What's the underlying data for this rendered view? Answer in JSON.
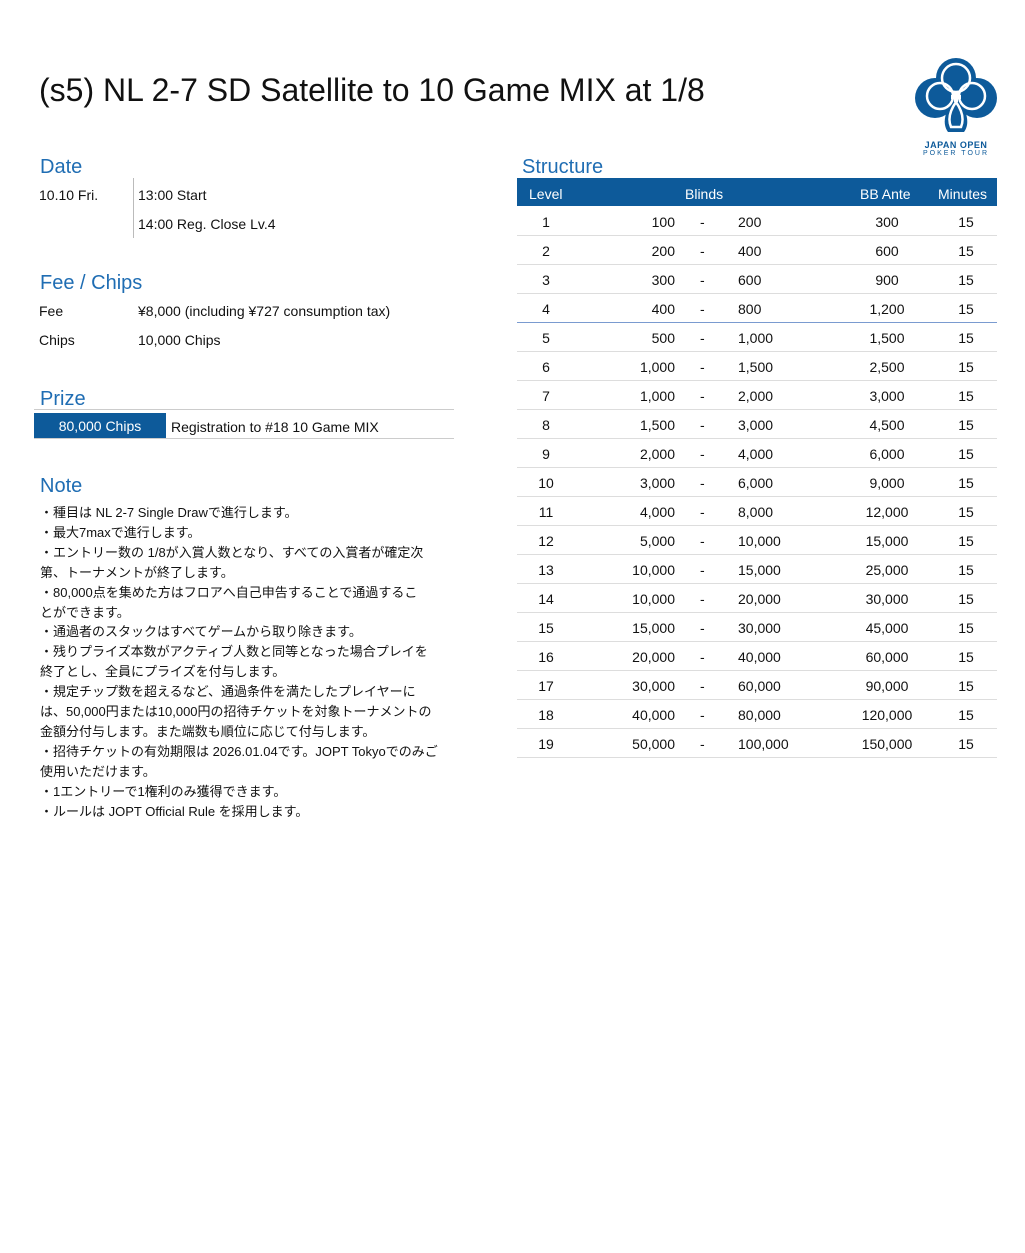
{
  "title": "(s5) NL 2-7 SD Satellite to 10 Game MIX at 1/8",
  "logo": {
    "line1": "JAPAN OPEN",
    "line2": "POKER TOUR",
    "color": "#0d5a9a"
  },
  "date": {
    "heading": "Date",
    "day": "10.10 Fri.",
    "start": "13:00 Start",
    "reg_close": "14:00 Reg. Close Lv.4"
  },
  "fee": {
    "heading": "Fee / Chips",
    "fee_label": "Fee",
    "fee_value": "¥8,000 (including ¥727 consumption tax)",
    "chips_label": "Chips",
    "chips_value": "10,000 Chips"
  },
  "prize": {
    "heading": "Prize",
    "amount": "80,000 Chips",
    "description": "Registration to #18 10 Game MIX"
  },
  "note": {
    "heading": "Note",
    "lines": [
      "・種目は NL 2-7 Single Drawで進行します。",
      "・最大7maxで進行します。",
      "・エントリー数の 1/8が入賞人数となり、すべての入賞者が確定次",
      "第、トーナメントが終了します。",
      "・80,000点を集めた方はフロアへ自己申告することで通過するこ",
      "とができます。",
      "・通過者のスタックはすべてゲームから取り除きます。",
      "・残りプライズ本数がアクティブ人数と同等となった場合プレイを",
      "終了とし、全員にプライズを付与します。",
      "・規定チップ数を超えるなど、通過条件を満たしたプレイヤーに",
      "は、50,000円または10,000円の招待チケットを対象トーナメントの",
      "金額分付与します。また端数も順位に応じて付与します。",
      "・招待チケットの有効期限は 2026.01.04です。JOPT Tokyoでのみご",
      "使用いただけます。",
      "・1エントリーで1権利のみ獲得できます。",
      "・ルールは JOPT Official Rule を採用します。"
    ]
  },
  "structure": {
    "heading": "Structure",
    "headers": {
      "level": "Level",
      "blinds": "Blinds",
      "ante": "BB Ante",
      "minutes": "Minutes"
    },
    "rows": [
      [
        "1",
        "100",
        "-",
        "200",
        "300",
        "15"
      ],
      [
        "2",
        "200",
        "-",
        "400",
        "600",
        "15"
      ],
      [
        "3",
        "300",
        "-",
        "600",
        "900",
        "15"
      ],
      [
        "4",
        "400",
        "-",
        "800",
        "1,200",
        "15"
      ],
      [
        "5",
        "500",
        "-",
        "1,000",
        "1,500",
        "15"
      ],
      [
        "6",
        "1,000",
        "-",
        "1,500",
        "2,500",
        "15"
      ],
      [
        "7",
        "1,000",
        "-",
        "2,000",
        "3,000",
        "15"
      ],
      [
        "8",
        "1,500",
        "-",
        "3,000",
        "4,500",
        "15"
      ],
      [
        "9",
        "2,000",
        "-",
        "4,000",
        "6,000",
        "15"
      ],
      [
        "10",
        "3,000",
        "-",
        "6,000",
        "9,000",
        "15"
      ],
      [
        "11",
        "4,000",
        "-",
        "8,000",
        "12,000",
        "15"
      ],
      [
        "12",
        "5,000",
        "-",
        "10,000",
        "15,000",
        "15"
      ],
      [
        "13",
        "10,000",
        "-",
        "15,000",
        "25,000",
        "15"
      ],
      [
        "14",
        "10,000",
        "-",
        "20,000",
        "30,000",
        "15"
      ],
      [
        "15",
        "15,000",
        "-",
        "30,000",
        "45,000",
        "15"
      ],
      [
        "16",
        "20,000",
        "-",
        "40,000",
        "60,000",
        "15"
      ],
      [
        "17",
        "30,000",
        "-",
        "60,000",
        "90,000",
        "15"
      ],
      [
        "18",
        "40,000",
        "-",
        "80,000",
        "120,000",
        "15"
      ],
      [
        "19",
        "50,000",
        "-",
        "100,000",
        "150,000",
        "15"
      ]
    ]
  }
}
